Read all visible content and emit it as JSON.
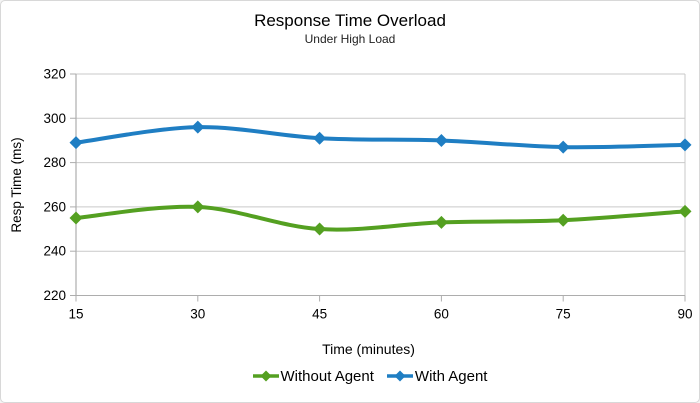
{
  "chart_data": {
    "type": "line",
    "title": "Response Time Overload",
    "subtitle": "Under High Load",
    "xlabel": "Time (minutes)",
    "ylabel": "Resp Time (ms)",
    "x": [
      15,
      30,
      45,
      60,
      75,
      90
    ],
    "xticks": [
      "15",
      "30",
      "45",
      "60",
      "75",
      "90"
    ],
    "yticks": [
      "220",
      "240",
      "260",
      "280",
      "300",
      "320"
    ],
    "ylim": [
      220,
      320
    ],
    "xlim": [
      15,
      90
    ],
    "grid": true,
    "line_style": "smooth",
    "marker": "diamond",
    "legend_position": "bottom",
    "series": [
      {
        "name": "Without Agent",
        "color": "#54A021",
        "values": [
          255,
          260,
          250,
          253,
          254,
          258
        ]
      },
      {
        "name": "With Agent",
        "color": "#1F7EC3",
        "values": [
          289,
          296,
          291,
          290,
          287,
          288
        ]
      }
    ],
    "colors": {
      "gridline": "#C9C9C9",
      "axis": "#ADADAD",
      "text": "#000000",
      "background": "#FFFFFF",
      "border": "#D8D8D8"
    }
  }
}
